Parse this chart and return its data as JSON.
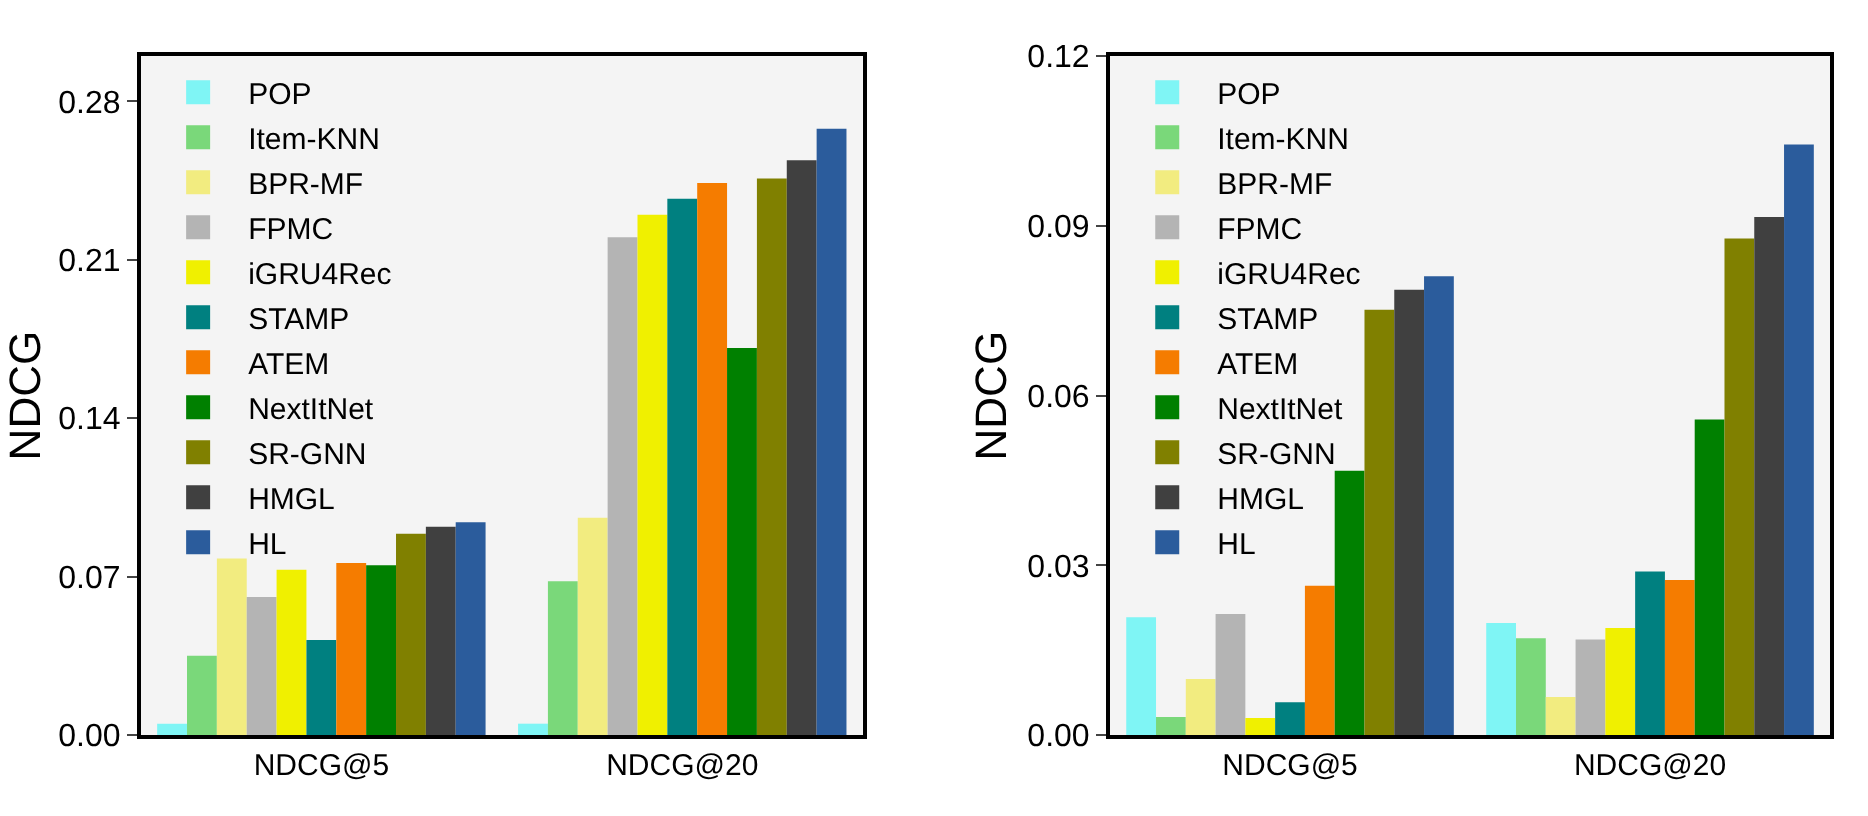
{
  "chart_data": [
    {
      "type": "bar",
      "ylabel": "NDCG",
      "categories": [
        "NDCG@5",
        "NDCG@20"
      ],
      "ylim": [
        0,
        0.3
      ],
      "yticks": [
        {
          "value": 0,
          "label": "0.00"
        },
        0.07,
        0.14,
        0.21,
        0.28
      ],
      "grid": false,
      "legend": "top left",
      "series": [
        {
          "name": "POP",
          "color": "#7ff5f5",
          "values": [
            0.005,
            0.005
          ]
        },
        {
          "name": "Item-KNN",
          "color": "#7ad87a",
          "values": [
            0.035,
            0.068
          ]
        },
        {
          "name": "BPR-MF",
          "color": "#f2ec80",
          "values": [
            0.078,
            0.096
          ]
        },
        {
          "name": "FPMC",
          "color": "#b4b4b4",
          "values": [
            0.061,
            0.22
          ]
        },
        {
          "name": "iGRU4Rec",
          "color": "#f0f000",
          "values": [
            0.073,
            0.23
          ]
        },
        {
          "name": "STAMP",
          "color": "#008080",
          "values": [
            0.042,
            0.237
          ]
        },
        {
          "name": "ATEM",
          "color": "#f57c00",
          "values": [
            0.076,
            0.244
          ]
        },
        {
          "name": "NextItNet",
          "color": "#008000",
          "values": [
            0.075,
            0.171
          ]
        },
        {
          "name": "SR-GNN",
          "color": "#808000",
          "values": [
            0.089,
            0.246
          ]
        },
        {
          "name": "HMGL",
          "color": "#404040",
          "values": [
            0.092,
            0.254
          ]
        },
        {
          "name": "HL",
          "color": "#2b5c9c",
          "values": [
            0.094,
            0.268
          ]
        }
      ]
    },
    {
      "type": "bar",
      "ylabel": "NDCG",
      "categories": [
        "NDCG@5",
        "NDCG@20"
      ],
      "ylim": [
        0,
        0.12
      ],
      "yticks": [
        {
          "value": 0,
          "label": "0.00"
        },
        0.03,
        0.06,
        0.09,
        0.12
      ],
      "grid": false,
      "legend": "top left",
      "series": [
        {
          "name": "POP",
          "color": "#7ff5f5",
          "values": [
            0.0208,
            0.0198
          ]
        },
        {
          "name": "Item-KNN",
          "color": "#7ad87a",
          "values": [
            0.0032,
            0.0171
          ]
        },
        {
          "name": "BPR-MF",
          "color": "#f2ec80",
          "values": [
            0.0099,
            0.0067
          ]
        },
        {
          "name": "FPMC",
          "color": "#b4b4b4",
          "values": [
            0.0214,
            0.0169
          ]
        },
        {
          "name": "iGRU4Rec",
          "color": "#f0f000",
          "values": [
            0.003,
            0.0189
          ]
        },
        {
          "name": "STAMP",
          "color": "#008080",
          "values": [
            0.0058,
            0.0289
          ]
        },
        {
          "name": "ATEM",
          "color": "#f57c00",
          "values": [
            0.0264,
            0.0274
          ]
        },
        {
          "name": "NextItNet",
          "color": "#008000",
          "values": [
            0.0467,
            0.0558
          ]
        },
        {
          "name": "SR-GNN",
          "color": "#808000",
          "values": [
            0.0752,
            0.0878
          ]
        },
        {
          "name": "HMGL",
          "color": "#404040",
          "values": [
            0.0787,
            0.0916
          ]
        },
        {
          "name": "HL",
          "color": "#2b5c9c",
          "values": [
            0.0811,
            0.1044
          ]
        }
      ]
    }
  ]
}
